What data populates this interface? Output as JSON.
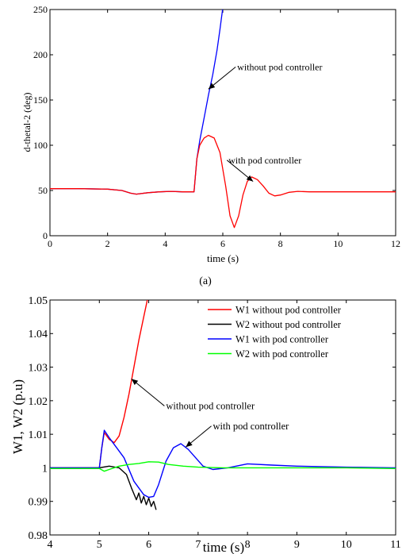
{
  "chart_data": [
    {
      "type": "line",
      "xlabel": "time (s)",
      "ylabel": "d-thetal-2 (deg)",
      "xlim": [
        0,
        12
      ],
      "ylim": [
        0,
        250
      ],
      "xticks": [
        "0",
        "2",
        "4",
        "6",
        "8",
        "10",
        "12"
      ],
      "yticks": [
        "0",
        "50",
        "100",
        "150",
        "200",
        "250"
      ],
      "grid": false,
      "caption": "(a)",
      "series": [
        {
          "color": "#0000ff",
          "x": [
            0,
            1,
            2,
            2.5,
            2.8,
            3.0,
            3.4,
            3.8,
            4.2,
            4.6,
            5.0,
            5.1,
            5.2,
            5.35,
            5.5,
            5.65,
            5.8,
            5.9,
            6.0
          ],
          "y": [
            52,
            52,
            51.5,
            50,
            47,
            46,
            47.5,
            48.5,
            49,
            48.5,
            48.5,
            85,
            105,
            130,
            155,
            178,
            205,
            228,
            252
          ]
        },
        {
          "color": "#ff0000",
          "x": [
            0,
            1,
            2,
            2.5,
            2.8,
            3.0,
            3.4,
            3.8,
            4.2,
            4.6,
            5.0,
            5.1,
            5.2,
            5.35,
            5.5,
            5.7,
            5.9,
            6.1,
            6.25,
            6.4,
            6.55,
            6.7,
            6.85,
            7.0,
            7.2,
            7.4,
            7.6,
            7.8,
            8.0,
            8.3,
            8.6,
            9.0,
            9.5,
            10,
            11,
            12
          ],
          "y": [
            52,
            52,
            51.5,
            50,
            47,
            46,
            47.5,
            48.5,
            49,
            48.5,
            48.5,
            85,
            100,
            108,
            111,
            108,
            92,
            55,
            22,
            9,
            22,
            45,
            60,
            65,
            62,
            55,
            47,
            44,
            45,
            48,
            49,
            48.5,
            48.5,
            48.5,
            48.5,
            48.5
          ]
        }
      ],
      "annotations": [
        {
          "text": "without pod controller",
          "x": 6.5,
          "y": 183
        },
        {
          "text": "with pod controller",
          "x": 6.2,
          "y": 80
        }
      ]
    },
    {
      "type": "line",
      "xlabel": "time (s)",
      "ylabel": "W1, W2 (p.u)",
      "xlim": [
        4,
        11
      ],
      "ylim": [
        0.98,
        1.05
      ],
      "xticks": [
        "4",
        "5",
        "6",
        "7",
        "8",
        "9",
        "10",
        "11"
      ],
      "yticks": [
        "0.98",
        "0.99",
        "1",
        "1.01",
        "1.02",
        "1.03",
        "1.04",
        "1.05"
      ],
      "grid": false,
      "legend": "top-right",
      "series": [
        {
          "name": "W1 without pod controller",
          "color": "#ff0000",
          "x": [
            4,
            4.5,
            5.0,
            5.05,
            5.1,
            5.2,
            5.3,
            5.4,
            5.5,
            5.6,
            5.7,
            5.8,
            5.9,
            6.0
          ],
          "y": [
            1.0,
            1.0,
            1.0,
            1.006,
            1.0105,
            1.0085,
            1.0075,
            1.0095,
            1.015,
            1.022,
            1.03,
            1.038,
            1.045,
            1.052
          ]
        },
        {
          "name": "W2 without pod controller",
          "color": "#000000",
          "x": [
            4,
            4.5,
            5.0,
            5.2,
            5.4,
            5.55,
            5.65,
            5.75,
            5.8,
            5.85,
            5.9,
            5.95,
            6.0,
            6.05,
            6.1,
            6.15
          ],
          "y": [
            1.0,
            1.0,
            1.0,
            1.0005,
            1.0,
            0.998,
            0.994,
            0.9905,
            0.9925,
            0.9895,
            0.9915,
            0.989,
            0.991,
            0.9885,
            0.99,
            0.9875
          ]
        },
        {
          "name": "W1 with pod controller",
          "color": "#0000ff",
          "x": [
            4,
            4.5,
            5.0,
            5.05,
            5.1,
            5.2,
            5.35,
            5.5,
            5.7,
            5.9,
            6.0,
            6.1,
            6.2,
            6.35,
            6.5,
            6.65,
            6.8,
            6.95,
            7.1,
            7.3,
            7.6,
            8.0,
            8.5,
            9.0,
            10,
            11
          ],
          "y": [
            1.0,
            1.0,
            1.0,
            1.006,
            1.0112,
            1.009,
            1.006,
            1.003,
            0.996,
            0.992,
            0.9912,
            0.9915,
            0.995,
            1.002,
            1.006,
            1.0072,
            1.0055,
            1.003,
            1.0005,
            0.9995,
            1.0,
            1.0012,
            1.0008,
            1.0005,
            1.0002,
            1.0
          ]
        },
        {
          "name": "W2 with pod controller",
          "color": "#00ff00",
          "x": [
            4,
            4.5,
            5.0,
            5.1,
            5.2,
            5.4,
            5.6,
            5.8,
            6.0,
            6.2,
            6.4,
            6.7,
            7.0,
            7.5,
            8.0,
            9.0,
            10,
            11
          ],
          "y": [
            0.9998,
            0.9998,
            0.9998,
            0.999,
            0.9995,
            1.0005,
            1.001,
            1.0013,
            1.0018,
            1.0017,
            1.001,
            1.0005,
            1.0002,
            1.0,
            1.0,
            1.0,
            1.0,
            0.9998
          ]
        }
      ],
      "annotations": [
        {
          "text": "without pod controller",
          "x": 6.35,
          "y": 1.0175
        },
        {
          "text": "with pod controller",
          "x": 7.3,
          "y": 1.0115
        }
      ]
    }
  ]
}
